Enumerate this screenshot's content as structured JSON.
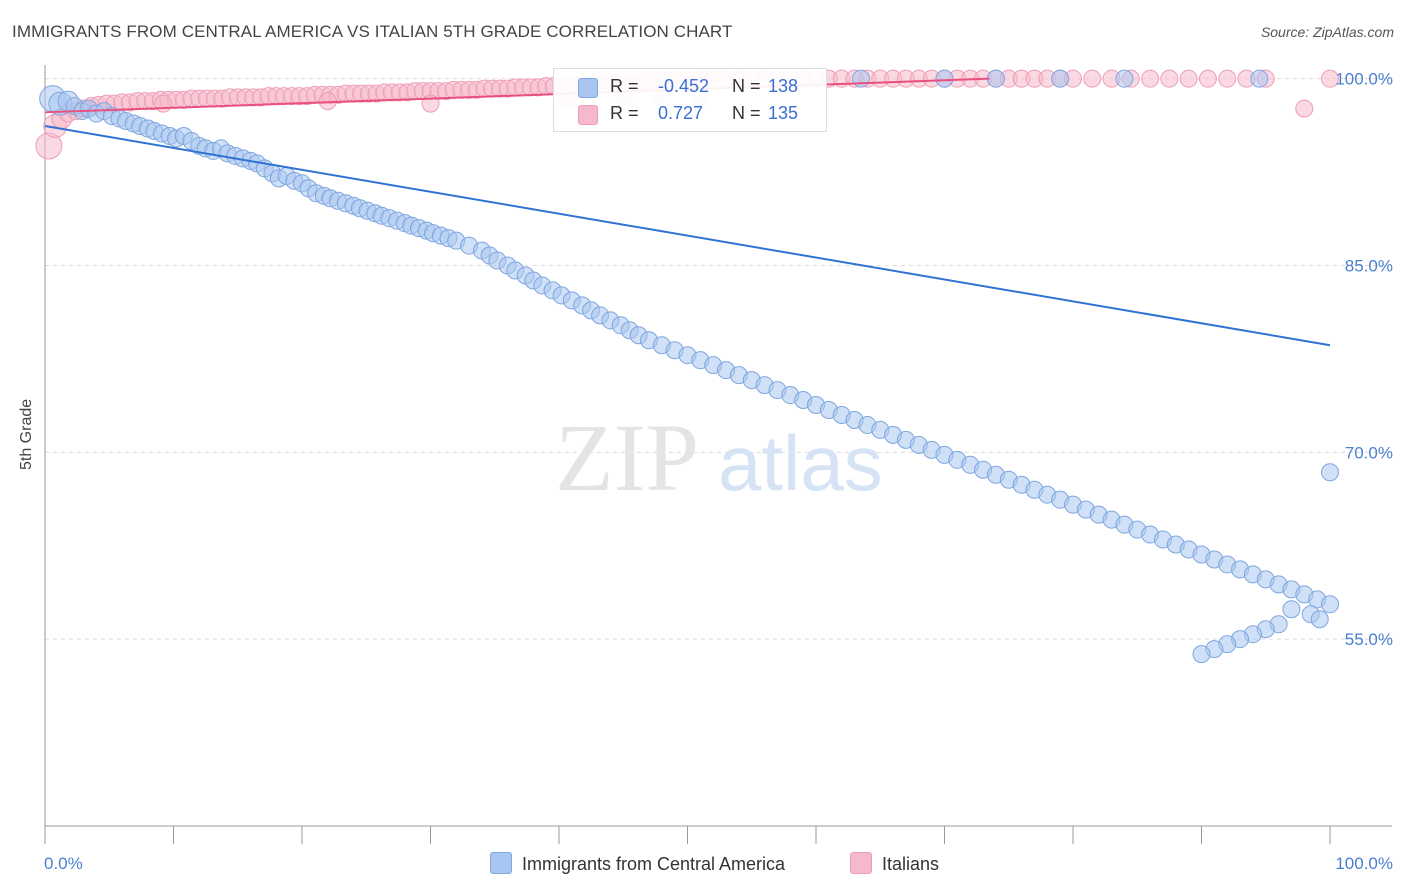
{
  "title": "IMMIGRANTS FROM CENTRAL AMERICA VS ITALIAN 5TH GRADE CORRELATION CHART",
  "source": "Source: ZipAtlas.com",
  "watermark": {
    "zip": "ZIP",
    "atlas": "atlas"
  },
  "colors": {
    "blue_fill": "#a9c6f0",
    "blue_stroke": "#7ea6e0",
    "blue_line": "#2f72d3",
    "pink_fill": "#f6b9cb",
    "pink_stroke": "#ee9db6",
    "pink_line": "#e8507f",
    "axis_text": "#4a7fd0",
    "grid": "#dcdcdc"
  },
  "legend": {
    "rows": [
      {
        "r_label": "R =",
        "r_value": "-0.452",
        "n_label": "N =",
        "n_value": "138"
      },
      {
        "r_label": "R =",
        "r_value": "0.727",
        "n_label": "N =",
        "n_value": "135"
      }
    ]
  },
  "bottom_legend": [
    "Immigrants from Central America",
    "Italians"
  ],
  "chart_data": {
    "type": "scatter",
    "title": "IMMIGRANTS FROM CENTRAL AMERICA VS ITALIAN 5TH GRADE CORRELATION CHART",
    "xlabel": "",
    "ylabel": "5th Grade",
    "xlim": [
      0,
      100
    ],
    "ylim": [
      40,
      101.5
    ],
    "x_tick_labels": [
      "0.0%",
      "100.0%"
    ],
    "y_ticks": [
      100,
      85,
      70,
      55
    ],
    "y_tick_labels": [
      "100.0%",
      "85.0%",
      "70.0%",
      "55.0%"
    ],
    "grid": true,
    "series": [
      {
        "name": "Immigrants from Central America",
        "color": "blue",
        "trendline": {
          "x": [
            0,
            100
          ],
          "y": [
            96.2,
            78.6
          ]
        },
        "points": [
          [
            0.6,
            98.4
          ],
          [
            1.2,
            98.0
          ],
          [
            1.8,
            98.2
          ],
          [
            2.3,
            97.8
          ],
          [
            2.9,
            97.4
          ],
          [
            3.4,
            97.6
          ],
          [
            4.0,
            97.2
          ],
          [
            4.6,
            97.4
          ],
          [
            5.2,
            97.0
          ],
          [
            5.8,
            96.8
          ],
          [
            6.3,
            96.6
          ],
          [
            6.9,
            96.4
          ],
          [
            7.4,
            96.2
          ],
          [
            8.0,
            96.0
          ],
          [
            8.5,
            95.8
          ],
          [
            9.1,
            95.6
          ],
          [
            9.7,
            95.4
          ],
          [
            10.2,
            95.2
          ],
          [
            10.8,
            95.4
          ],
          [
            11.4,
            95.0
          ],
          [
            12.0,
            94.6
          ],
          [
            12.5,
            94.4
          ],
          [
            13.1,
            94.2
          ],
          [
            13.7,
            94.4
          ],
          [
            14.2,
            94.0
          ],
          [
            14.8,
            93.8
          ],
          [
            15.4,
            93.6
          ],
          [
            16.0,
            93.4
          ],
          [
            16.5,
            93.2
          ],
          [
            17.1,
            92.8
          ],
          [
            17.7,
            92.4
          ],
          [
            18.2,
            92.0
          ],
          [
            18.8,
            92.2
          ],
          [
            19.4,
            91.8
          ],
          [
            20.0,
            91.6
          ],
          [
            20.5,
            91.2
          ],
          [
            21.1,
            90.8
          ],
          [
            21.7,
            90.6
          ],
          [
            22.2,
            90.4
          ],
          [
            22.8,
            90.2
          ],
          [
            23.4,
            90.0
          ],
          [
            24.0,
            89.8
          ],
          [
            24.5,
            89.6
          ],
          [
            25.1,
            89.4
          ],
          [
            25.7,
            89.2
          ],
          [
            26.2,
            89.0
          ],
          [
            26.8,
            88.8
          ],
          [
            27.4,
            88.6
          ],
          [
            28.0,
            88.4
          ],
          [
            28.5,
            88.2
          ],
          [
            29.1,
            88.0
          ],
          [
            29.7,
            87.8
          ],
          [
            30.2,
            87.6
          ],
          [
            30.8,
            87.4
          ],
          [
            31.4,
            87.2
          ],
          [
            32.0,
            87.0
          ],
          [
            33.0,
            86.6
          ],
          [
            34.0,
            86.2
          ],
          [
            34.6,
            85.8
          ],
          [
            35.2,
            85.4
          ],
          [
            36.0,
            85.0
          ],
          [
            36.6,
            84.6
          ],
          [
            37.4,
            84.2
          ],
          [
            38.0,
            83.8
          ],
          [
            38.7,
            83.4
          ],
          [
            39.5,
            83.0
          ],
          [
            40.2,
            82.6
          ],
          [
            41.0,
            82.2
          ],
          [
            41.8,
            81.8
          ],
          [
            42.5,
            81.4
          ],
          [
            43.2,
            81.0
          ],
          [
            44.0,
            80.6
          ],
          [
            44.8,
            80.2
          ],
          [
            45.5,
            79.8
          ],
          [
            46.2,
            79.4
          ],
          [
            47.0,
            79.0
          ],
          [
            48.0,
            78.6
          ],
          [
            49.0,
            78.2
          ],
          [
            50.0,
            77.8
          ],
          [
            51.0,
            77.4
          ],
          [
            52.0,
            77.0
          ],
          [
            53.0,
            76.6
          ],
          [
            54.0,
            76.2
          ],
          [
            55.0,
            75.8
          ],
          [
            56.0,
            75.4
          ],
          [
            57.0,
            75.0
          ],
          [
            58.0,
            74.6
          ],
          [
            59.0,
            74.2
          ],
          [
            60.0,
            73.8
          ],
          [
            61.0,
            73.4
          ],
          [
            62.0,
            73.0
          ],
          [
            63.0,
            72.6
          ],
          [
            64.0,
            72.2
          ],
          [
            65.0,
            71.8
          ],
          [
            66.0,
            71.4
          ],
          [
            67.0,
            71.0
          ],
          [
            68.0,
            70.6
          ],
          [
            69.0,
            70.2
          ],
          [
            70.0,
            69.8
          ],
          [
            71.0,
            69.4
          ],
          [
            72.0,
            69.0
          ],
          [
            73.0,
            68.6
          ],
          [
            74.0,
            68.2
          ],
          [
            75.0,
            67.8
          ],
          [
            76.0,
            67.4
          ],
          [
            77.0,
            67.0
          ],
          [
            78.0,
            66.6
          ],
          [
            79.0,
            66.2
          ],
          [
            80.0,
            65.8
          ],
          [
            81.0,
            65.4
          ],
          [
            82.0,
            65.0
          ],
          [
            83.0,
            64.6
          ],
          [
            84.0,
            64.2
          ],
          [
            85.0,
            63.8
          ],
          [
            86.0,
            63.4
          ],
          [
            87.0,
            63.0
          ],
          [
            88.0,
            62.6
          ],
          [
            89.0,
            62.2
          ],
          [
            90.0,
            61.8
          ],
          [
            91.0,
            61.4
          ],
          [
            92.0,
            61.0
          ],
          [
            93.0,
            60.6
          ],
          [
            94.0,
            60.2
          ],
          [
            95.0,
            59.8
          ],
          [
            96.0,
            59.4
          ],
          [
            97.0,
            59.0
          ],
          [
            98.0,
            58.6
          ],
          [
            99.0,
            58.2
          ],
          [
            100.0,
            68.4
          ],
          [
            63.5,
            100.0
          ],
          [
            70.0,
            100.0
          ],
          [
            74.0,
            100.0
          ],
          [
            79.0,
            100.0
          ],
          [
            84.0,
            100.0
          ],
          [
            94.5,
            100.0
          ],
          [
            100.0,
            57.8
          ],
          [
            97.0,
            57.4
          ],
          [
            98.5,
            57.0
          ],
          [
            99.2,
            56.6
          ],
          [
            96.0,
            56.2
          ],
          [
            95.0,
            55.8
          ],
          [
            94.0,
            55.4
          ],
          [
            93.0,
            55.0
          ],
          [
            92.0,
            54.6
          ],
          [
            91.0,
            54.2
          ],
          [
            90.0,
            53.8
          ]
        ]
      },
      {
        "name": "Italians",
        "color": "pink",
        "trendline": {
          "x": [
            0,
            73.5
          ],
          "y": [
            97.3,
            100.0
          ]
        },
        "points": [
          [
            0.3,
            94.6
          ],
          [
            0.8,
            96.2
          ],
          [
            1.3,
            96.8
          ],
          [
            1.8,
            97.2
          ],
          [
            2.4,
            97.4
          ],
          [
            3.0,
            97.6
          ],
          [
            3.6,
            97.8
          ],
          [
            4.2,
            97.9
          ],
          [
            4.8,
            98.0
          ],
          [
            5.4,
            98.0
          ],
          [
            6.0,
            98.1
          ],
          [
            6.6,
            98.1
          ],
          [
            7.2,
            98.2
          ],
          [
            7.8,
            98.2
          ],
          [
            8.4,
            98.2
          ],
          [
            9.0,
            98.3
          ],
          [
            9.6,
            98.3
          ],
          [
            10.2,
            98.3
          ],
          [
            10.8,
            98.3
          ],
          [
            11.4,
            98.4
          ],
          [
            12.0,
            98.4
          ],
          [
            12.6,
            98.4
          ],
          [
            13.2,
            98.4
          ],
          [
            13.8,
            98.4
          ],
          [
            14.4,
            98.5
          ],
          [
            15.0,
            98.5
          ],
          [
            15.6,
            98.5
          ],
          [
            16.2,
            98.5
          ],
          [
            16.8,
            98.5
          ],
          [
            17.4,
            98.6
          ],
          [
            18.0,
            98.6
          ],
          [
            18.6,
            98.6
          ],
          [
            19.2,
            98.6
          ],
          [
            19.8,
            98.6
          ],
          [
            20.4,
            98.6
          ],
          [
            21.0,
            98.7
          ],
          [
            21.6,
            98.7
          ],
          [
            22.2,
            98.7
          ],
          [
            22.8,
            98.7
          ],
          [
            23.4,
            98.8
          ],
          [
            24.0,
            98.8
          ],
          [
            24.6,
            98.8
          ],
          [
            25.2,
            98.8
          ],
          [
            25.8,
            98.8
          ],
          [
            26.4,
            98.9
          ],
          [
            27.0,
            98.9
          ],
          [
            27.6,
            98.9
          ],
          [
            28.2,
            98.9
          ],
          [
            28.8,
            99.0
          ],
          [
            29.4,
            99.0
          ],
          [
            30.0,
            99.0
          ],
          [
            30.6,
            99.0
          ],
          [
            31.2,
            99.0
          ],
          [
            31.8,
            99.1
          ],
          [
            32.4,
            99.1
          ],
          [
            33.0,
            99.1
          ],
          [
            33.6,
            99.1
          ],
          [
            34.2,
            99.2
          ],
          [
            34.8,
            99.2
          ],
          [
            35.4,
            99.2
          ],
          [
            36.0,
            99.2
          ],
          [
            36.6,
            99.3
          ],
          [
            37.2,
            99.3
          ],
          [
            37.8,
            99.3
          ],
          [
            38.4,
            99.3
          ],
          [
            39.0,
            99.4
          ],
          [
            39.6,
            99.4
          ],
          [
            40.2,
            99.4
          ],
          [
            40.8,
            99.4
          ],
          [
            41.4,
            99.5
          ],
          [
            42.0,
            99.5
          ],
          [
            42.6,
            99.5
          ],
          [
            43.2,
            99.5
          ],
          [
            43.8,
            99.6
          ],
          [
            44.4,
            99.6
          ],
          [
            45.0,
            99.6
          ],
          [
            45.6,
            99.7
          ],
          [
            46.2,
            99.7
          ],
          [
            46.8,
            99.7
          ],
          [
            47.4,
            99.8
          ],
          [
            48.0,
            99.8
          ],
          [
            48.6,
            99.8
          ],
          [
            49.2,
            99.9
          ],
          [
            49.8,
            99.9
          ],
          [
            50.4,
            99.9
          ],
          [
            51.0,
            100.0
          ],
          [
            51.6,
            100.0
          ],
          [
            52.2,
            100.0
          ],
          [
            53.0,
            100.0
          ],
          [
            54.0,
            100.0
          ],
          [
            55.0,
            100.0
          ],
          [
            56.0,
            100.0
          ],
          [
            57.0,
            100.0
          ],
          [
            58.0,
            100.0
          ],
          [
            59.0,
            100.0
          ],
          [
            60.0,
            100.0
          ],
          [
            61.0,
            100.0
          ],
          [
            62.0,
            100.0
          ],
          [
            63.0,
            100.0
          ],
          [
            64.0,
            100.0
          ],
          [
            65.0,
            100.0
          ],
          [
            66.0,
            100.0
          ],
          [
            67.0,
            100.0
          ],
          [
            68.0,
            100.0
          ],
          [
            69.0,
            100.0
          ],
          [
            70.0,
            100.0
          ],
          [
            71.0,
            100.0
          ],
          [
            72.0,
            100.0
          ],
          [
            73.0,
            100.0
          ],
          [
            74.0,
            100.0
          ],
          [
            75.0,
            100.0
          ],
          [
            76.0,
            100.0
          ],
          [
            77.0,
            100.0
          ],
          [
            78.0,
            100.0
          ],
          [
            79.0,
            100.0
          ],
          [
            80.0,
            100.0
          ],
          [
            81.5,
            100.0
          ],
          [
            83.0,
            100.0
          ],
          [
            84.5,
            100.0
          ],
          [
            86.0,
            100.0
          ],
          [
            87.5,
            100.0
          ],
          [
            89.0,
            100.0
          ],
          [
            90.5,
            100.0
          ],
          [
            92.0,
            100.0
          ],
          [
            93.5,
            100.0
          ],
          [
            95.0,
            100.0
          ],
          [
            100.0,
            100.0
          ],
          [
            98.0,
            97.6
          ],
          [
            9.2,
            98.0
          ],
          [
            22.0,
            98.2
          ],
          [
            30.0,
            98.0
          ],
          [
            40.6,
            98.4
          ],
          [
            45.0,
            98.6
          ],
          [
            48.0,
            98.6
          ],
          [
            51.0,
            98.6
          ]
        ]
      }
    ]
  }
}
